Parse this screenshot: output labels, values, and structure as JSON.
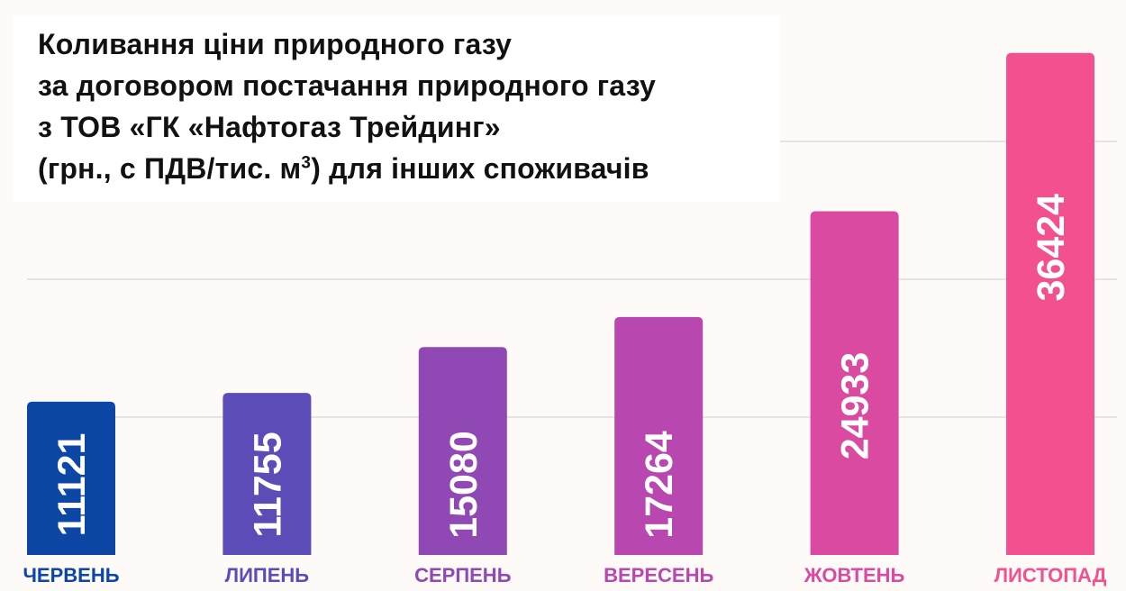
{
  "chart_data": {
    "type": "bar",
    "title_lines": [
      "Коливання ціни природного газу",
      "за договором постачання природного газу",
      "з ТОВ «ГК «Нафтогаз Трейдинг»",
      "(грн., с ПДВ/тис. м",
      "3",
      ") для інших споживачів"
    ],
    "categories": [
      "ЧЕРВЕНЬ",
      "ЛИПЕНЬ",
      "СЕРПЕНЬ",
      "ВЕРЕСЕНЬ",
      "ЖОВТЕНЬ",
      "ЛИСТОПАД"
    ],
    "values": [
      11121,
      11755,
      15080,
      17264,
      24933,
      36424
    ],
    "value_labels": [
      "11121",
      "11755",
      "15080",
      "17264",
      "24933",
      "36424"
    ],
    "colors": [
      "#0d47a6",
      "#5b4cb8",
      "#8f48b4",
      "#b847b0",
      "#db4aa1",
      "#f2508f"
    ],
    "category_label_colors": [
      "#0d47a6",
      "#5b4cb8",
      "#8f48b4",
      "#b847b0",
      "#db4aa1",
      "#f2508f"
    ],
    "ylim": [
      0,
      40000
    ],
    "gridlines": [
      10000,
      20000,
      30000
    ],
    "grid": true,
    "xlabel": "",
    "ylabel": ""
  }
}
